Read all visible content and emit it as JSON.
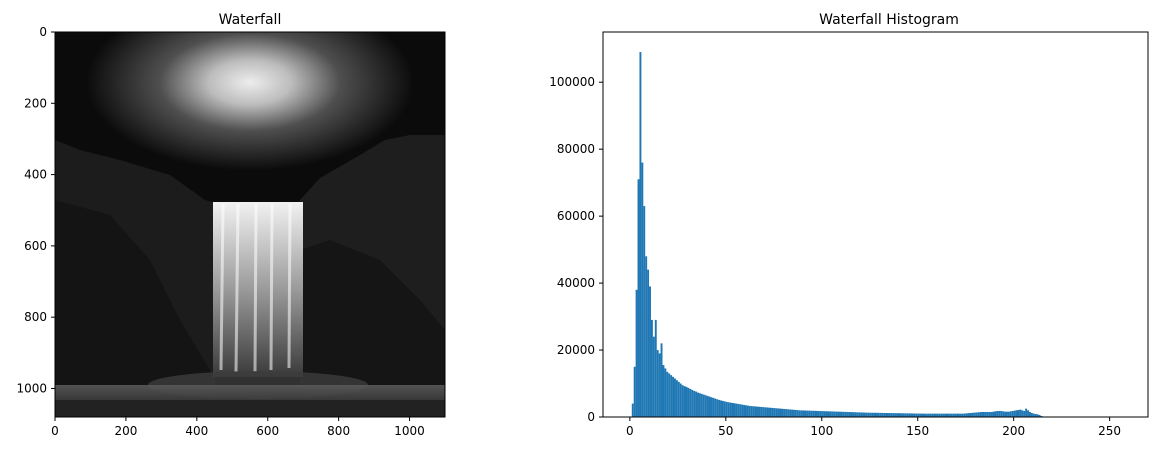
{
  "chart_data": [
    {
      "type": "image",
      "title": "Waterfall",
      "image_description_colormap": "gray",
      "xlim": [
        0,
        1100
      ],
      "ylim": [
        1080,
        0
      ],
      "xticks": [
        0,
        200,
        400,
        600,
        800,
        1000
      ],
      "yticks": [
        0,
        200,
        400,
        600,
        800,
        1000
      ],
      "xtick_labels": [
        "0",
        "200",
        "400",
        "600",
        "800",
        "1000"
      ],
      "ytick_labels": [
        "0",
        "200",
        "400",
        "600",
        "800",
        "1000"
      ]
    },
    {
      "type": "bar",
      "title": "Waterfall Histogram",
      "color": "#1f77b4",
      "xlim": [
        -14,
        270
      ],
      "ylim": [
        0,
        115000
      ],
      "xticks": [
        0,
        50,
        100,
        150,
        200,
        250
      ],
      "yticks": [
        0,
        20000,
        40000,
        60000,
        80000,
        100000
      ],
      "xtick_labels": [
        "0",
        "50",
        "100",
        "150",
        "200",
        "250"
      ],
      "ytick_labels": [
        "0",
        "20000",
        "40000",
        "60000",
        "80000",
        "100000"
      ],
      "bin_width": 1,
      "x_start": 0,
      "values": [
        0,
        4000,
        15000,
        38000,
        71000,
        109000,
        76000,
        63000,
        48000,
        44000,
        39000,
        29000,
        24000,
        29000,
        20000,
        19000,
        22000,
        15500,
        14500,
        13500,
        13000,
        12500,
        12000,
        11500,
        11000,
        10500,
        10000,
        9500,
        9200,
        9000,
        8700,
        8400,
        8100,
        7800,
        7600,
        7300,
        7100,
        6900,
        6700,
        6500,
        6300,
        6100,
        5900,
        5700,
        5500,
        5300,
        5100,
        4950,
        4800,
        4650,
        4500,
        4400,
        4300,
        4200,
        4100,
        4000,
        3900,
        3800,
        3700,
        3600,
        3500,
        3400,
        3300,
        3250,
        3200,
        3150,
        3100,
        3050,
        3000,
        2950,
        2900,
        2850,
        2800,
        2750,
        2700,
        2650,
        2600,
        2550,
        2500,
        2450,
        2400,
        2350,
        2300,
        2250,
        2200,
        2150,
        2100,
        2050,
        2000,
        1980,
        1960,
        1940,
        1920,
        1900,
        1880,
        1860,
        1840,
        1820,
        1800,
        1780,
        1760,
        1740,
        1720,
        1700,
        1680,
        1660,
        1640,
        1620,
        1600,
        1580,
        1560,
        1540,
        1520,
        1500,
        1480,
        1460,
        1440,
        1420,
        1400,
        1380,
        1360,
        1340,
        1320,
        1300,
        1290,
        1280,
        1270,
        1260,
        1250,
        1240,
        1230,
        1220,
        1210,
        1200,
        1190,
        1180,
        1170,
        1160,
        1150,
        1140,
        1130,
        1120,
        1110,
        1100,
        1090,
        1080,
        1070,
        1060,
        1050,
        1040,
        1030,
        1020,
        1010,
        1000,
        1000,
        1000,
        1000,
        1000,
        1000,
        1000,
        1000,
        1000,
        1000,
        1000,
        1000,
        1000,
        1000,
        1000,
        1000,
        1000,
        1000,
        1000,
        1000,
        1000,
        1050,
        1100,
        1150,
        1200,
        1250,
        1300,
        1350,
        1400,
        1450,
        1500,
        1500,
        1500,
        1500,
        1500,
        1500,
        1600,
        1700,
        1800,
        1800,
        1800,
        1700,
        1600,
        1600,
        1600,
        1700,
        1800,
        1900,
        2000,
        2100,
        2200,
        2000,
        1800,
        2500,
        2000,
        1500,
        1200,
        1000,
        900,
        800,
        600,
        300,
        0,
        0,
        0,
        0,
        0,
        0,
        0,
        0,
        0,
        0,
        0,
        0,
        0,
        0,
        0,
        0,
        0,
        0,
        0,
        0,
        0,
        0,
        0,
        0,
        0,
        0,
        0,
        0,
        0,
        0,
        0,
        0,
        0,
        0,
        0,
        0,
        0,
        0,
        0,
        0,
        0,
        0,
        0,
        0,
        0,
        0,
        0,
        0,
        0,
        0
      ]
    }
  ]
}
